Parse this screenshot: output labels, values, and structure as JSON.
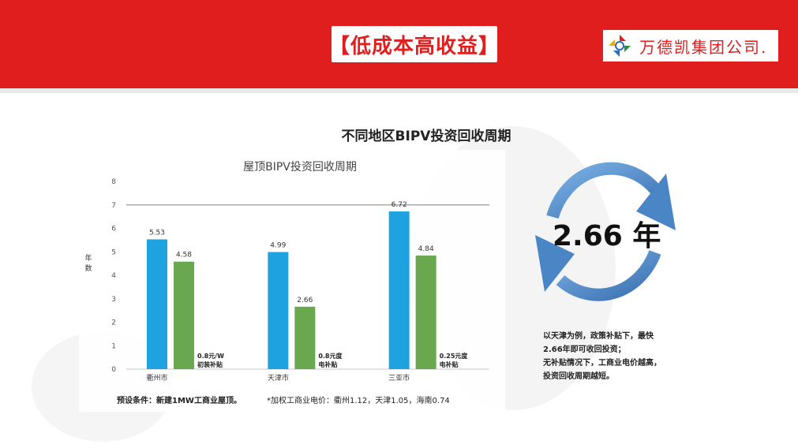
{
  "header": {
    "title": "【低成本高收益】",
    "company": "万德凯集团公司."
  },
  "main_title": "不同地区BIPV投资回收周期",
  "chart_data": {
    "type": "bar",
    "title": "屋顶BIPV投资回收周期",
    "ylabel": "年数",
    "xlabel": "",
    "categories": [
      "衢州市",
      "天津市",
      "三亚市"
    ],
    "series": [
      {
        "values": [
          5.53,
          4.99,
          6.72
        ],
        "color": "#1fa3e0"
      },
      {
        "values": [
          4.58,
          2.66,
          4.84
        ],
        "color": "#6aa84f"
      }
    ],
    "ylim": [
      0,
      8
    ],
    "yticks": [
      0,
      1,
      2,
      3,
      4,
      5,
      6,
      7,
      8
    ],
    "reference_line": 7,
    "grid": false,
    "annotations": [
      "0.8元/W 初装补贴",
      "0.8元度 电补贴",
      "0.25元度 电补贴"
    ]
  },
  "notes": {
    "left": "预设条件：新建1MW工商业屋顶。",
    "right": "*加权工商业电价：衢州1.12，天津1.05，海南0.74"
  },
  "highlight": {
    "value": "2.66 年",
    "arrow_color": "#4a86c5"
  },
  "description": [
    "以天津为例，政策补贴下，最快",
    "2.66年即可收回投资；",
    "无补贴情况下，工商业电价越高，",
    "投资回收周期越短。"
  ],
  "colors": {
    "brand_red": "#e01e1e",
    "bar_blue": "#1fa3e0",
    "bar_green": "#6aa84f"
  }
}
